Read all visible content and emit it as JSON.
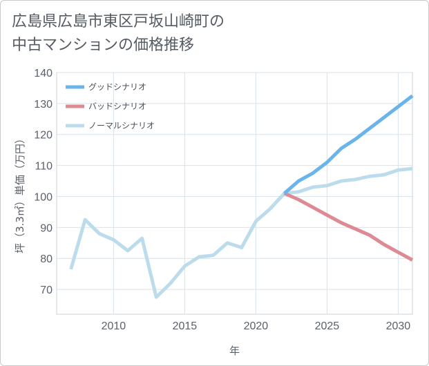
{
  "title_line1": "広島県広島市東区戸坂山崎町の",
  "title_line2": "中古マンションの価格推移",
  "chart_data": {
    "type": "line",
    "xlabel": "年",
    "ylabel": "坪（3.3㎡）単価（万円）",
    "xlim": [
      2006,
      2031
    ],
    "ylim": [
      62,
      140
    ],
    "x_ticks": [
      2010,
      2015,
      2020,
      2025,
      2030
    ],
    "y_ticks": [
      70,
      80,
      90,
      100,
      110,
      120,
      130,
      140
    ],
    "grid": true,
    "legend_position": "top-left",
    "series": [
      {
        "name": "グッドシナリオ",
        "color": "#6ab4ec",
        "x": [
          2022,
          2023,
          2024,
          2025,
          2026,
          2027,
          2028,
          2029,
          2030,
          2031
        ],
        "y": [
          101,
          105,
          107.5,
          111,
          115.5,
          118.5,
          122,
          125.5,
          129,
          132.5
        ]
      },
      {
        "name": "バッドシナリオ",
        "color": "#de8a94",
        "x": [
          2022,
          2023,
          2024,
          2025,
          2026,
          2027,
          2028,
          2029,
          2030,
          2031
        ],
        "y": [
          101,
          99,
          96.5,
          94,
          91.5,
          89.5,
          87.5,
          84.5,
          82,
          79.5
        ]
      },
      {
        "name": "ノーマルシナリオ",
        "color": "#bcdcec",
        "x": [
          2007,
          2008,
          2009,
          2010,
          2011,
          2012,
          2013,
          2014,
          2015,
          2016,
          2017,
          2018,
          2019,
          2020,
          2021,
          2022,
          2023,
          2024,
          2025,
          2026,
          2027,
          2028,
          2029,
          2030,
          2031
        ],
        "y": [
          76.5,
          92.5,
          88,
          86,
          82.5,
          86.5,
          67.5,
          72,
          77.5,
          80.5,
          81,
          85,
          83.5,
          92,
          96,
          101,
          101.5,
          103,
          103.5,
          105,
          105.5,
          106.5,
          107,
          108.5,
          109
        ]
      }
    ]
  }
}
